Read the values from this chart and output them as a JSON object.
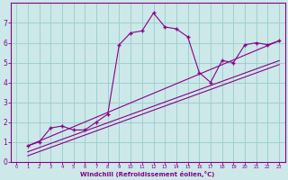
{
  "xlabel": "Windchill (Refroidissement éolien,°C)",
  "background_color": "#cce8e8",
  "line_color": "#880088",
  "grid_color": "#99cccc",
  "xlim": [
    -0.5,
    23.5
  ],
  "ylim": [
    0,
    8
  ],
  "xticks": [
    0,
    1,
    2,
    3,
    4,
    5,
    6,
    7,
    8,
    9,
    10,
    11,
    12,
    13,
    14,
    15,
    16,
    17,
    18,
    19,
    20,
    21,
    22,
    23
  ],
  "yticks": [
    0,
    1,
    2,
    3,
    4,
    5,
    6,
    7
  ],
  "series1_x": [
    1,
    2,
    3,
    4,
    5,
    6,
    7,
    8,
    9,
    10,
    11,
    12,
    13,
    14,
    15,
    16,
    17,
    18,
    19,
    20,
    21,
    22,
    23
  ],
  "series1_y": [
    0.8,
    1.0,
    1.7,
    1.8,
    1.6,
    1.6,
    2.0,
    2.4,
    5.9,
    6.5,
    6.6,
    7.5,
    6.8,
    6.7,
    6.3,
    4.5,
    4.0,
    5.1,
    5.0,
    5.9,
    6.0,
    5.9,
    6.1
  ],
  "series2_x": [
    1,
    23
  ],
  "series2_y": [
    0.8,
    6.1
  ],
  "series3_x": [
    1,
    23
  ],
  "series3_y": [
    0.5,
    5.1
  ],
  "series4_x": [
    1,
    23
  ],
  "series4_y": [
    0.3,
    4.9
  ]
}
